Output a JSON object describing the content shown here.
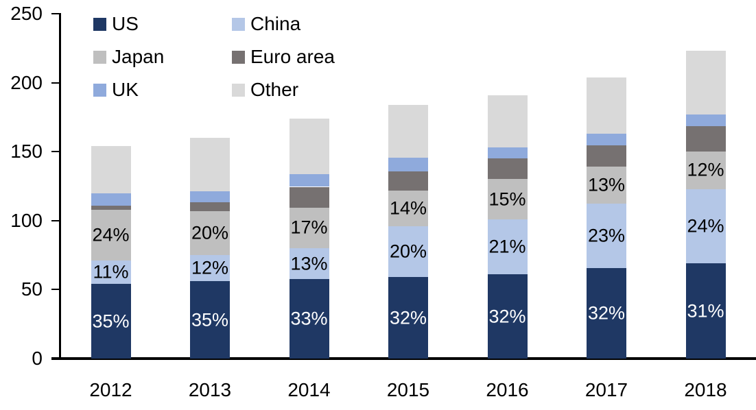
{
  "chart_data": {
    "type": "bar",
    "stacked": true,
    "title": "",
    "xlabel": "",
    "ylabel": "",
    "ylim": [
      0,
      250
    ],
    "yticks": [
      0,
      50,
      100,
      150,
      200,
      250
    ],
    "grid": false,
    "legend_position": "top-left, two columns",
    "categories": [
      "2012",
      "2013",
      "2014",
      "2015",
      "2016",
      "2017",
      "2018"
    ],
    "series": [
      {
        "name": "US",
        "color": "#1F3864",
        "values": [
          54,
          56,
          57.5,
          59,
          61,
          65.5,
          69
        ],
        "labels": [
          "35%",
          "35%",
          "33%",
          "32%",
          "32%",
          "32%",
          "31%"
        ],
        "label_color": "#FFFFFF"
      },
      {
        "name": "China",
        "color": "#B4C7E7",
        "values": [
          17,
          19,
          22.5,
          37,
          40,
          47,
          54
        ],
        "labels": [
          "11%",
          "12%",
          "13%",
          "20%",
          "21%",
          "23%",
          "24%"
        ],
        "label_color": "#000000"
      },
      {
        "name": "Japan",
        "color": "#BFBFBF",
        "values": [
          37,
          32,
          29.5,
          26,
          29,
          26.5,
          27
        ],
        "labels": [
          "24%",
          "20%",
          "17%",
          "14%",
          "15%",
          "13%",
          "12%"
        ],
        "label_color": "#000000"
      },
      {
        "name": "Euro area",
        "color": "#767171",
        "values": [
          3,
          6.5,
          15,
          13.5,
          15,
          15.5,
          18.5
        ],
        "labels": [
          null,
          null,
          null,
          null,
          null,
          null,
          null
        ],
        "label_color": "#000000"
      },
      {
        "name": "UK",
        "color": "#8FAADC",
        "values": [
          9,
          8,
          9,
          10,
          8,
          8.5,
          8.5
        ],
        "labels": [
          null,
          null,
          null,
          null,
          null,
          null,
          null
        ],
        "label_color": "#000000"
      },
      {
        "name": "Other",
        "color": "#D9D9D9",
        "values": [
          34,
          38.5,
          40.5,
          38.5,
          38,
          41,
          46
        ],
        "labels": [
          null,
          null,
          null,
          null,
          null,
          null,
          null
        ],
        "label_color": "#000000"
      }
    ],
    "totals": [
      154,
      160,
      174,
      184,
      191,
      204,
      223
    ],
    "axis_color": "#000000",
    "text_color": "#000000"
  }
}
